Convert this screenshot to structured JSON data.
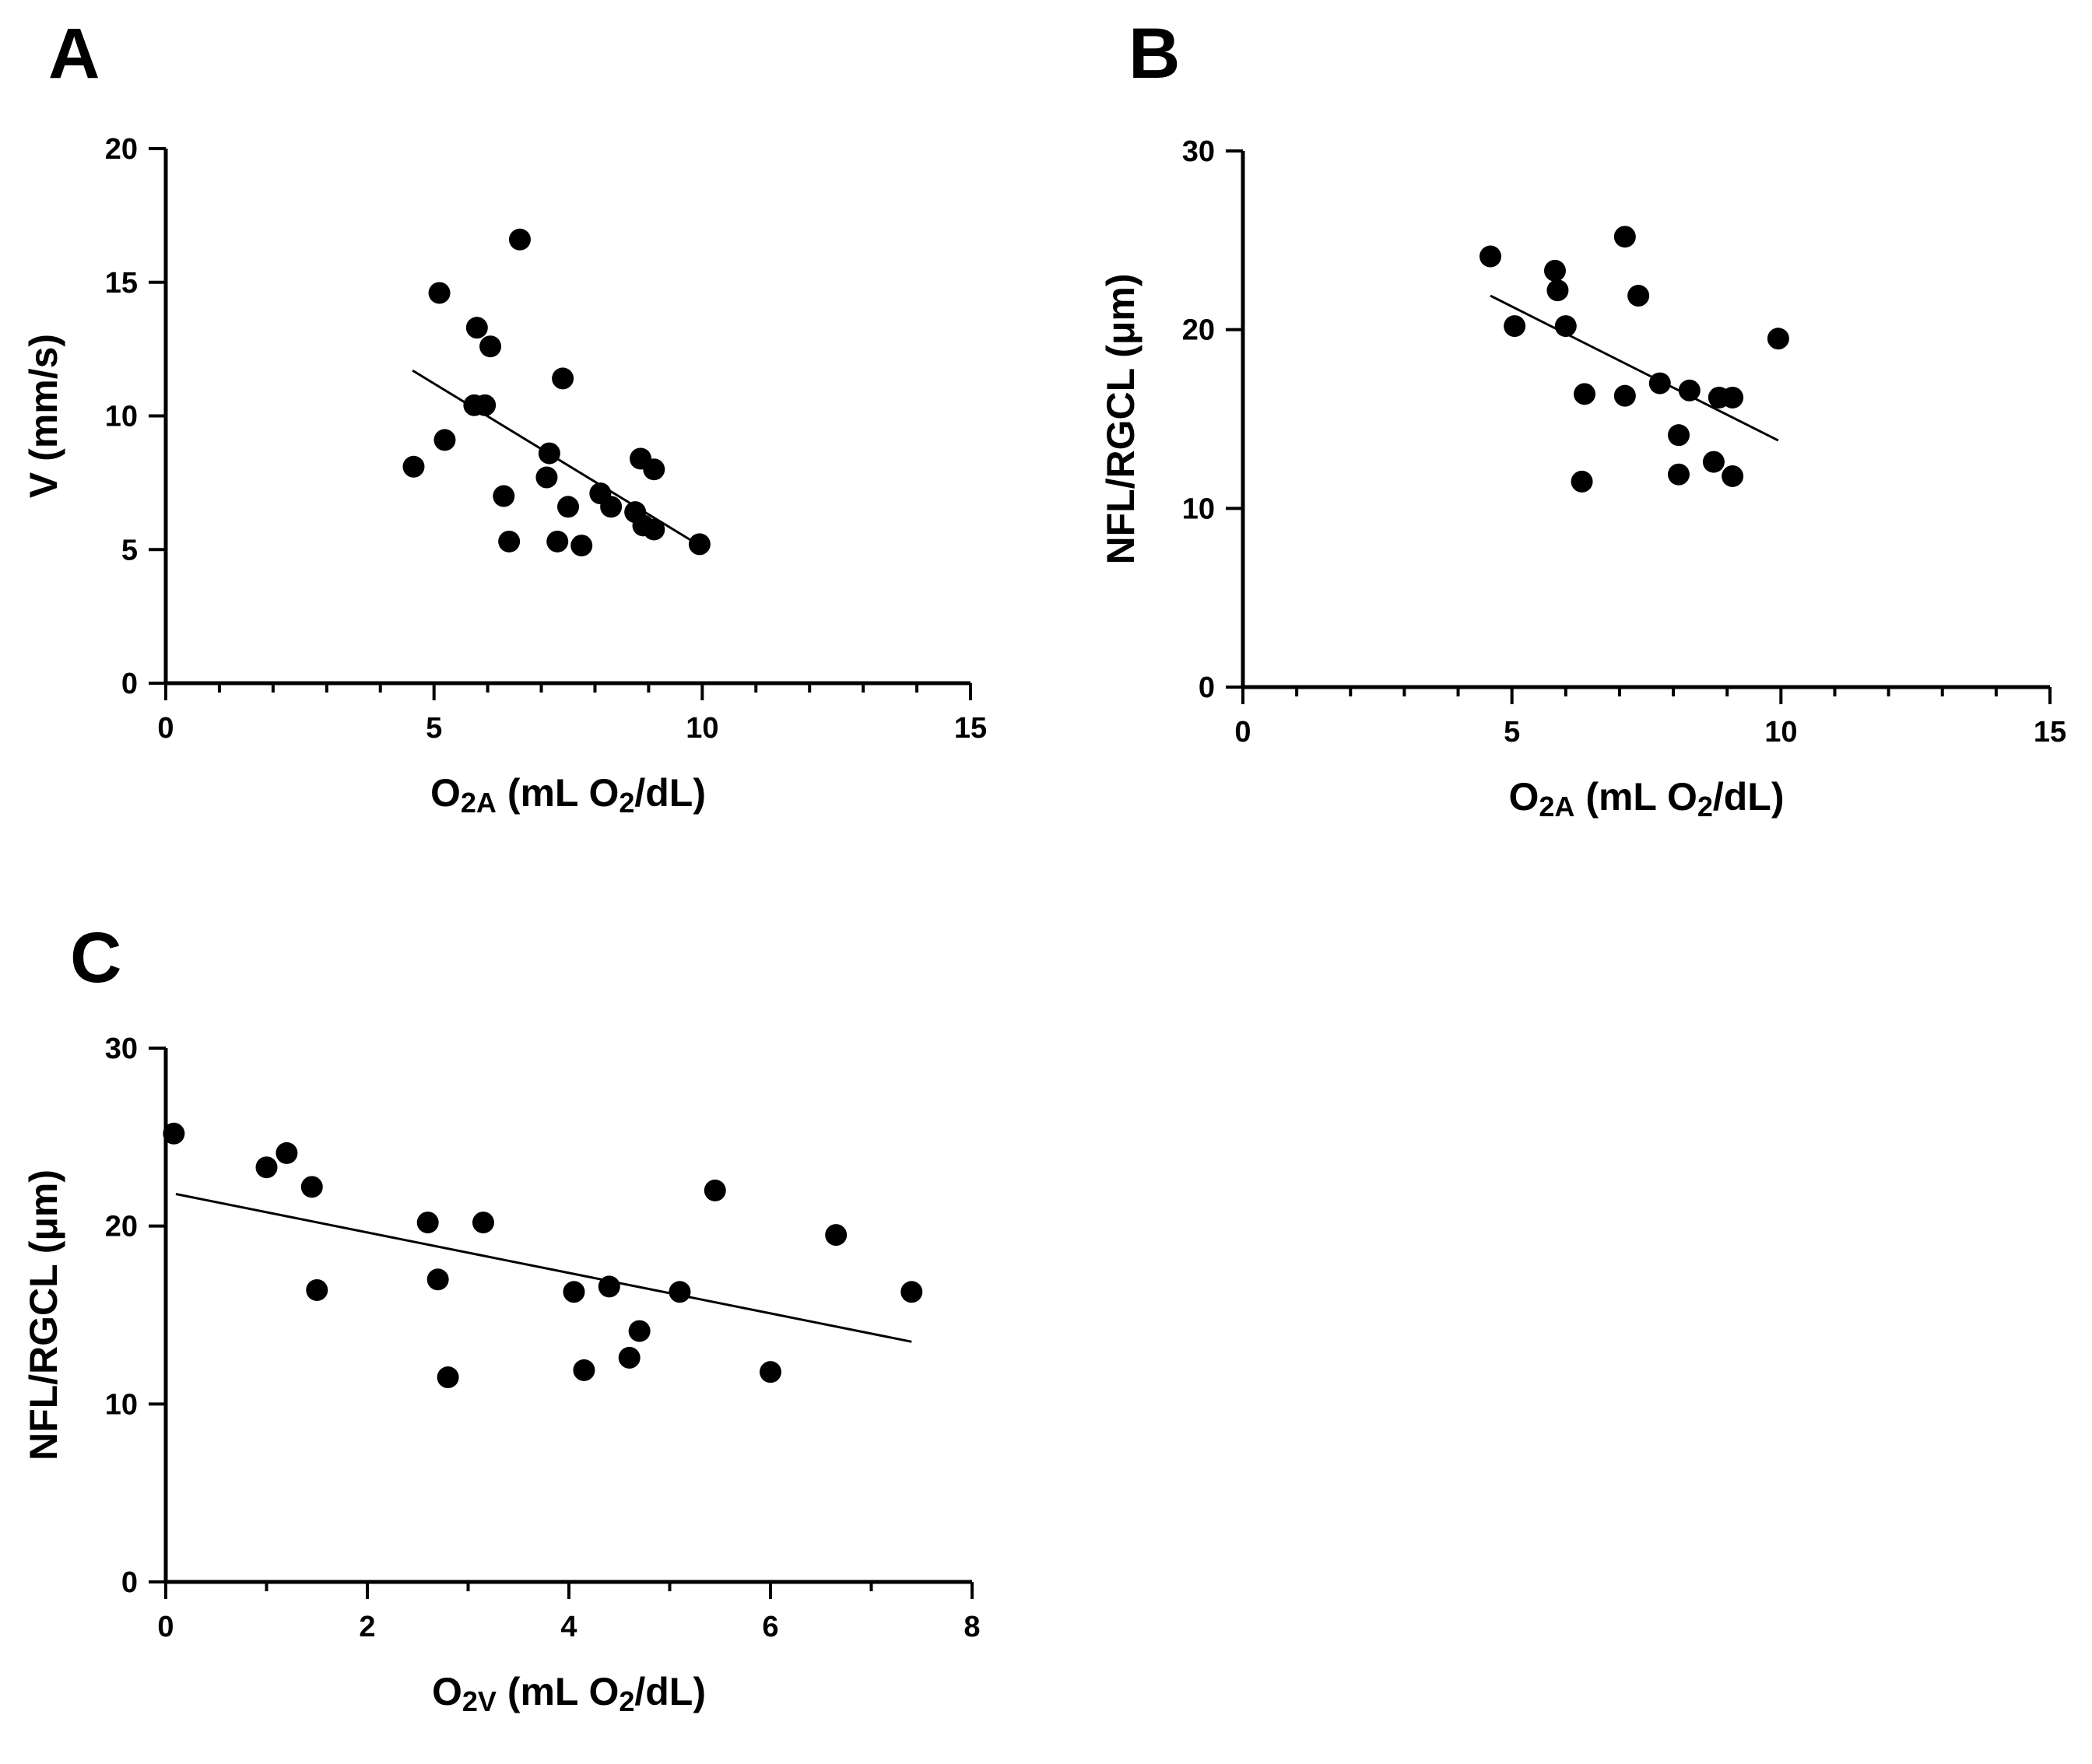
{
  "colors": {
    "ink": "#000000",
    "background": "#ffffff"
  },
  "chart_data": [
    {
      "panel": "A",
      "type": "scatter",
      "xlabel": {
        "main": "O",
        "sub": "2A",
        "rest_a": " (mL O",
        "sub2": "2",
        "rest_b": "/dL)"
      },
      "ylabel": "V (mm/s)",
      "xlim": [
        0,
        15
      ],
      "ylim": [
        0,
        20
      ],
      "xticks": [
        0,
        5,
        10,
        15
      ],
      "xtick_labels": [
        "0",
        "5",
        "10",
        "15"
      ],
      "xminor_step": 1,
      "yticks": [
        0,
        5,
        10,
        15,
        20
      ],
      "ytick_labels": [
        "0",
        "5",
        "10",
        "15",
        "20"
      ],
      "yminor_step": null,
      "grid": false,
      "points": [
        [
          4.62,
          8.1
        ],
        [
          5.1,
          14.6
        ],
        [
          5.2,
          9.1
        ],
        [
          5.8,
          13.3
        ],
        [
          5.75,
          10.4
        ],
        [
          5.95,
          10.4
        ],
        [
          6.05,
          12.6
        ],
        [
          6.3,
          7.0
        ],
        [
          6.4,
          5.3
        ],
        [
          6.6,
          16.6
        ],
        [
          7.1,
          7.7
        ],
        [
          7.15,
          8.6
        ],
        [
          7.3,
          5.3
        ],
        [
          7.4,
          11.4
        ],
        [
          7.5,
          6.6
        ],
        [
          7.75,
          5.15
        ],
        [
          8.1,
          7.1
        ],
        [
          8.3,
          6.6
        ],
        [
          8.75,
          6.4
        ],
        [
          8.85,
          8.4
        ],
        [
          8.9,
          5.9
        ],
        [
          9.1,
          5.75
        ],
        [
          9.1,
          8.0
        ],
        [
          9.95,
          5.2
        ]
      ],
      "fit": [
        [
          4.6,
          11.7
        ],
        [
          9.95,
          5.15
        ]
      ]
    },
    {
      "panel": "B",
      "type": "scatter",
      "xlabel": {
        "main": "O",
        "sub": "2A",
        "rest_a": " (mL O",
        "sub2": "2",
        "rest_b": "/dL)"
      },
      "ylabel": "NFL/RGCL (μm)",
      "xlim": [
        0,
        15
      ],
      "ylim": [
        0,
        30
      ],
      "xticks": [
        0,
        5,
        10,
        15
      ],
      "xtick_labels": [
        "0",
        "5",
        "10",
        "15"
      ],
      "xminor_step": 1,
      "yticks": [
        0,
        10,
        20,
        30
      ],
      "ytick_labels": [
        "0",
        "10",
        "20",
        "30"
      ],
      "yminor_step": null,
      "grid": false,
      "points": [
        [
          4.6,
          24.1
        ],
        [
          5.05,
          20.2
        ],
        [
          5.8,
          23.3
        ],
        [
          5.85,
          22.2
        ],
        [
          6.0,
          20.2
        ],
        [
          6.35,
          16.4
        ],
        [
          6.3,
          11.5
        ],
        [
          7.1,
          25.2
        ],
        [
          7.1,
          16.3
        ],
        [
          7.35,
          21.9
        ],
        [
          7.75,
          17.0
        ],
        [
          8.1,
          14.1
        ],
        [
          8.1,
          11.9
        ],
        [
          8.3,
          16.6
        ],
        [
          8.75,
          12.6
        ],
        [
          8.85,
          16.2
        ],
        [
          9.1,
          16.2
        ],
        [
          9.1,
          11.8
        ],
        [
          9.95,
          19.5
        ]
      ],
      "fit": [
        [
          4.6,
          21.9
        ],
        [
          9.95,
          13.8
        ]
      ]
    },
    {
      "panel": "C",
      "type": "scatter",
      "xlabel": {
        "main": "O",
        "sub": "2V",
        "rest_a": " (mL O",
        "sub2": "2",
        "rest_b": "/dL)"
      },
      "ylabel": "NFL/RGCL (μm)",
      "xlim": [
        0,
        8
      ],
      "ylim": [
        0,
        30
      ],
      "xticks": [
        0,
        2,
        4,
        6,
        8
      ],
      "xtick_labels": [
        "0",
        "2",
        "4",
        "6",
        "8"
      ],
      "xminor_step": 1,
      "yticks": [
        0,
        10,
        20,
        30
      ],
      "ytick_labels": [
        "0",
        "10",
        "20",
        "30"
      ],
      "yminor_step": null,
      "grid": false,
      "points": [
        [
          0.08,
          25.2
        ],
        [
          1.0,
          23.3
        ],
        [
          1.2,
          24.1
        ],
        [
          1.45,
          22.2
        ],
        [
          1.5,
          16.4
        ],
        [
          2.6,
          20.2
        ],
        [
          2.7,
          17.0
        ],
        [
          2.8,
          11.5
        ],
        [
          3.15,
          20.2
        ],
        [
          4.05,
          16.3
        ],
        [
          4.15,
          11.9
        ],
        [
          4.4,
          16.6
        ],
        [
          4.6,
          12.6
        ],
        [
          4.7,
          14.1
        ],
        [
          5.1,
          16.3
        ],
        [
          5.45,
          22.0
        ],
        [
          6.0,
          11.8
        ],
        [
          6.65,
          19.5
        ],
        [
          7.4,
          16.3
        ]
      ],
      "fit": [
        [
          0.1,
          21.8
        ],
        [
          7.4,
          13.5
        ]
      ]
    }
  ]
}
